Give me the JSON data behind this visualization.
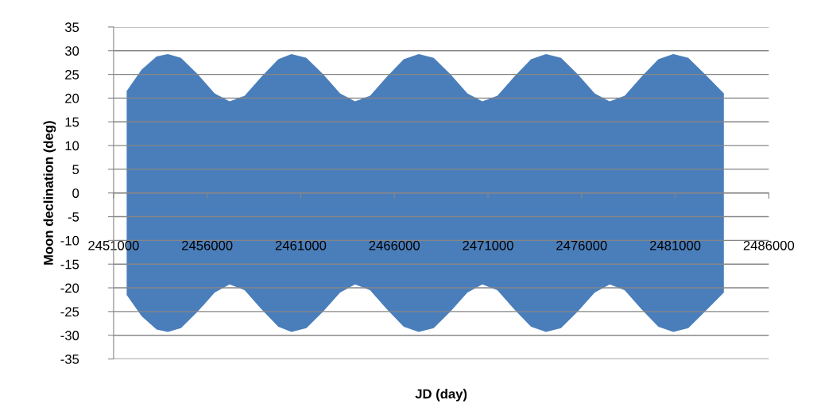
{
  "chart_data": {
    "type": "area",
    "xlabel": "JD (day)",
    "ylabel": "Moon declination (deg)",
    "x": [
      2451700,
      2452500,
      2453300,
      2453900,
      2454600,
      2455500,
      2456400,
      2457200,
      2458000,
      2458900,
      2459800,
      2460500,
      2461300,
      2462200,
      2463100,
      2463900,
      2464700,
      2465600,
      2466500,
      2467300,
      2468100,
      2469000,
      2469900,
      2470700,
      2471500,
      2472400,
      2473300,
      2474100,
      2474900,
      2475800,
      2476700,
      2477500,
      2478300,
      2479200,
      2480100,
      2480900,
      2481700,
      2482600,
      2483600
    ],
    "series": [
      {
        "color": "#4a7ebb",
        "values": [
          21.5,
          26,
          28.8,
          29.3,
          28.5,
          25,
          21,
          19.3,
          20.5,
          24.5,
          28.2,
          29.3,
          28.5,
          25,
          21,
          19.3,
          20.5,
          24.5,
          28.2,
          29.3,
          28.5,
          25,
          21,
          19.3,
          20.5,
          24.5,
          28.2,
          29.3,
          28.5,
          25,
          21,
          19.3,
          20.5,
          24.5,
          28.2,
          29.3,
          28.5,
          25,
          21
        ]
      },
      {
        "color": "#4a7ebb",
        "values": [
          -21.5,
          -26,
          -28.8,
          -29.3,
          -28.5,
          -25,
          -21,
          -19.3,
          -20.5,
          -24.5,
          -28.2,
          -29.3,
          -28.5,
          -25,
          -21,
          -19.3,
          -20.5,
          -24.5,
          -28.2,
          -29.3,
          -28.5,
          -25,
          -21,
          -19.3,
          -20.5,
          -24.5,
          -28.2,
          -29.3,
          -28.5,
          -25,
          -21,
          -19.3,
          -20.5,
          -24.5,
          -28.2,
          -29.3,
          -28.5,
          -25,
          -21
        ]
      }
    ],
    "xlim": [
      2451000,
      2486000
    ],
    "xticks": [
      2451000,
      2456000,
      2461000,
      2466000,
      2471000,
      2476000,
      2481000,
      2486000
    ],
    "ylim": [
      -35,
      35
    ],
    "yticks": [
      -35,
      -30,
      -25,
      -20,
      -15,
      -10,
      -5,
      0,
      5,
      10,
      15,
      20,
      25,
      30,
      35
    ],
    "grid": "y",
    "legend": false
  }
}
